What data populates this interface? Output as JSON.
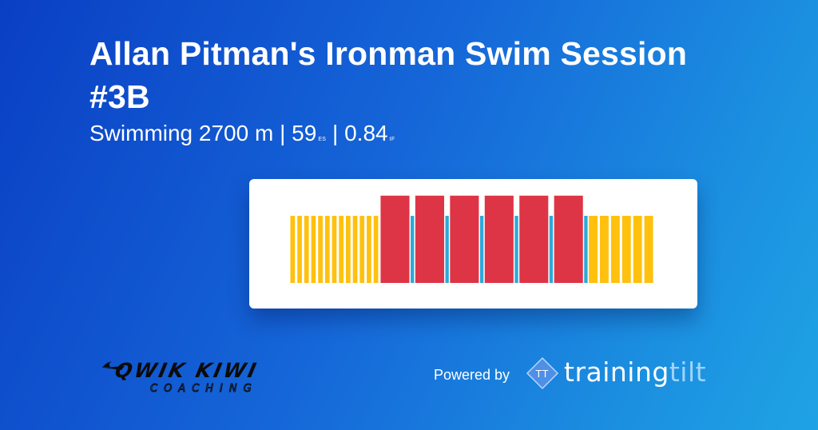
{
  "header": {
    "title": "Allan Pitman's Ironman Swim Session #3B",
    "sport_distance": "Swimming 2700 m",
    "separator": "|",
    "es_value": "59",
    "es_unit": "ES",
    "if_value": "0.84",
    "if_unit": "IF"
  },
  "chart_data": {
    "type": "bar",
    "title": "",
    "xlabel": "",
    "ylabel": "",
    "intensity_levels": {
      "low": 1,
      "rest": 1,
      "high": 1.3
    },
    "colors": {
      "warmup": "#ffc10e",
      "rest": "#2fa8d8",
      "main": "#de3546"
    },
    "segments": [
      {
        "kind": "warmup",
        "level": 1,
        "duration": 1
      },
      {
        "kind": "warmup",
        "level": 1,
        "duration": 1
      },
      {
        "kind": "warmup",
        "level": 1,
        "duration": 1
      },
      {
        "kind": "warmup",
        "level": 1,
        "duration": 1
      },
      {
        "kind": "warmup",
        "level": 1,
        "duration": 1
      },
      {
        "kind": "warmup",
        "level": 1,
        "duration": 1
      },
      {
        "kind": "warmup",
        "level": 1,
        "duration": 1
      },
      {
        "kind": "warmup",
        "level": 1,
        "duration": 1
      },
      {
        "kind": "warmup",
        "level": 1,
        "duration": 1
      },
      {
        "kind": "warmup",
        "level": 1,
        "duration": 1
      },
      {
        "kind": "warmup",
        "level": 1,
        "duration": 1
      },
      {
        "kind": "warmup",
        "level": 1,
        "duration": 1
      },
      {
        "kind": "warmup",
        "level": 1,
        "duration": 1
      },
      {
        "kind": "main",
        "level": 1.3,
        "duration": 4.5
      },
      {
        "kind": "rest",
        "level": 1,
        "duration": 0.5
      },
      {
        "kind": "main",
        "level": 1.3,
        "duration": 4.5
      },
      {
        "kind": "rest",
        "level": 1,
        "duration": 0.5
      },
      {
        "kind": "main",
        "level": 1.3,
        "duration": 4.5
      },
      {
        "kind": "rest",
        "level": 1,
        "duration": 0.5
      },
      {
        "kind": "main",
        "level": 1.3,
        "duration": 4.5
      },
      {
        "kind": "rest",
        "level": 1,
        "duration": 0.5
      },
      {
        "kind": "main",
        "level": 1.3,
        "duration": 4.5
      },
      {
        "kind": "rest",
        "level": 1,
        "duration": 0.5
      },
      {
        "kind": "main",
        "level": 1.3,
        "duration": 4.5
      },
      {
        "kind": "rest",
        "level": 1,
        "duration": 0.5
      },
      {
        "kind": "warmup",
        "level": 1,
        "duration": 1.6
      },
      {
        "kind": "warmup",
        "level": 1,
        "duration": 1.6
      },
      {
        "kind": "warmup",
        "level": 1,
        "duration": 1.6
      },
      {
        "kind": "warmup",
        "level": 1,
        "duration": 1.6
      },
      {
        "kind": "warmup",
        "level": 1,
        "duration": 1.6
      },
      {
        "kind": "warmup",
        "level": 1,
        "duration": 1.6
      }
    ]
  },
  "footer": {
    "coach_logo_name": "QWIK KIWI",
    "coach_logo_sub": "COACHING",
    "powered_by": "Powered by",
    "brand_badge": "TT",
    "brand_main": "training",
    "brand_accent": "tilt"
  }
}
